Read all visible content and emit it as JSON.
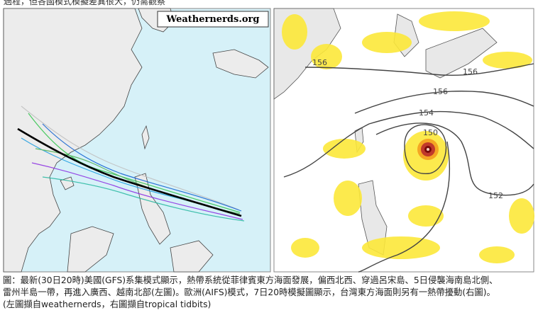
{
  "header": {
    "text": "過程，但各國模式模擬差異很大，仍需觀察"
  },
  "left_map": {
    "watermark": "Weathernerds.org"
  },
  "right_map": {
    "contour_labels": [
      "156",
      "156",
      "156",
      "154",
      "150",
      "152"
    ]
  },
  "caption": {
    "lines": [
      "圖：最新(30日20時)美國(GFS)系集模式顯示，熱帶系統從菲律賓東方海面發展，偏西北西、穿過呂宋島、5日侵襲海南島北側、",
      "雷州半島一帶，再進入廣西、越南北部(左圖)。歐洲(AIFS)模式，7日20時模擬圖顯示，台灣東方海面則另有一熱帶擾動(右圖)。",
      "(左圖擷自weathernerds，右圖擷自tropical tidbits)"
    ]
  }
}
